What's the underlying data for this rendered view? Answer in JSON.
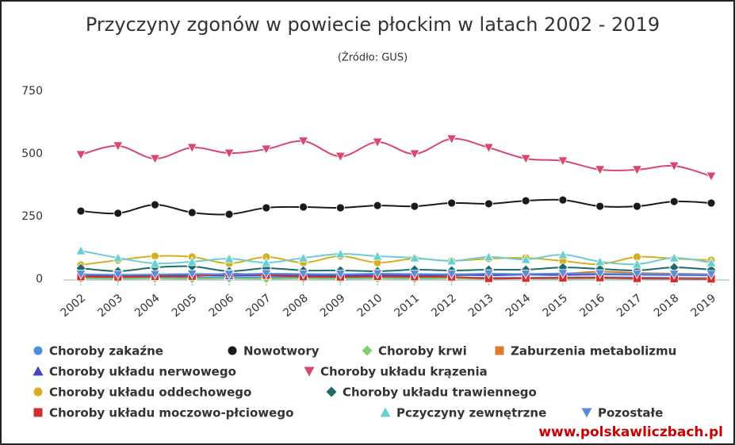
{
  "chart_data": {
    "type": "line",
    "title": "Przyczyny zgonów w powiecie płockim w latach 2002 - 2019",
    "subtitle": "(Źródło: GUS)",
    "watermark": "www.polskawliczbach.pl",
    "categories": [
      "2002",
      "2003",
      "2004",
      "2005",
      "2006",
      "2007",
      "2008",
      "2009",
      "2010",
      "2011",
      "2012",
      "2013",
      "2014",
      "2015",
      "2016",
      "2017",
      "2018",
      "2019"
    ],
    "ylim": [
      0,
      750
    ],
    "yticks": [
      0,
      250,
      500,
      750
    ],
    "grid": false,
    "legend": "bottom",
    "series": [
      {
        "name": "Choroby zakaźne",
        "color": "#4a8fd8",
        "marker": "circle",
        "values": [
          8,
          6,
          5,
          7,
          6,
          8,
          7,
          6,
          7,
          6,
          7,
          6,
          6,
          7,
          8,
          7,
          6,
          5
        ]
      },
      {
        "name": "Nowotwory",
        "color": "#1a1a1a",
        "marker": "circle",
        "values": [
          272,
          263,
          297,
          266,
          259,
          285,
          288,
          285,
          294,
          291,
          304,
          301,
          313,
          316,
          291,
          291,
          310,
          304
        ]
      },
      {
        "name": "Choroby krwi",
        "color": "#7ed06b",
        "marker": "diamond",
        "values": [
          3,
          2,
          3,
          2,
          3,
          2,
          3,
          2,
          3,
          2,
          3,
          2,
          3,
          2,
          3,
          2,
          3,
          2
        ]
      },
      {
        "name": "Zaburzenia metabolizmu",
        "color": "#e07b2a",
        "marker": "square",
        "values": [
          15,
          14,
          16,
          18,
          20,
          17,
          16,
          18,
          15,
          17,
          16,
          18,
          20,
          22,
          30,
          25,
          22,
          20
        ]
      },
      {
        "name": "Choroby układu nerwowego",
        "color": "#4444cc",
        "marker": "triangle",
        "values": [
          12,
          13,
          14,
          15,
          14,
          16,
          15,
          14,
          16,
          15,
          17,
          16,
          18,
          17,
          19,
          18,
          17,
          16
        ]
      },
      {
        "name": "Choroby układu krązenia",
        "color": "#d9466e",
        "marker": "triangle-down",
        "values": [
          497,
          532,
          481,
          525,
          503,
          519,
          551,
          490,
          547,
          500,
          560,
          525,
          481,
          472,
          437,
          437,
          452,
          411
        ]
      },
      {
        "name": "Choroby układu oddechowego",
        "color": "#d4b020",
        "marker": "circle",
        "values": [
          57,
          76,
          92,
          89,
          63,
          89,
          66,
          92,
          66,
          82,
          73,
          82,
          85,
          73,
          60,
          89,
          82,
          76
        ]
      },
      {
        "name": "Choroby układu trawiennego",
        "color": "#1f6b6b",
        "marker": "diamond",
        "values": [
          44,
          32,
          47,
          51,
          32,
          44,
          35,
          35,
          32,
          38,
          35,
          38,
          38,
          47,
          41,
          35,
          47,
          38
        ]
      },
      {
        "name": "Choroby układu moczowo-płciowego",
        "color": "#d32f2f",
        "marker": "square",
        "values": [
          10,
          9,
          11,
          12,
          22,
          16,
          10,
          9,
          11,
          10,
          9,
          3,
          4,
          5,
          6,
          3,
          2,
          1
        ]
      },
      {
        "name": "Pczyczyny zewnętrzne",
        "color": "#6ccfcf",
        "marker": "triangle",
        "values": [
          114,
          85,
          63,
          70,
          82,
          66,
          85,
          101,
          92,
          85,
          73,
          89,
          79,
          98,
          70,
          60,
          85,
          66
        ]
      },
      {
        "name": "Pozostałe",
        "color": "#5b8ed8",
        "marker": "triangle-down",
        "values": [
          20,
          18,
          19,
          21,
          20,
          22,
          21,
          20,
          22,
          21,
          20,
          22,
          21,
          23,
          22,
          21,
          20,
          19
        ]
      }
    ]
  }
}
